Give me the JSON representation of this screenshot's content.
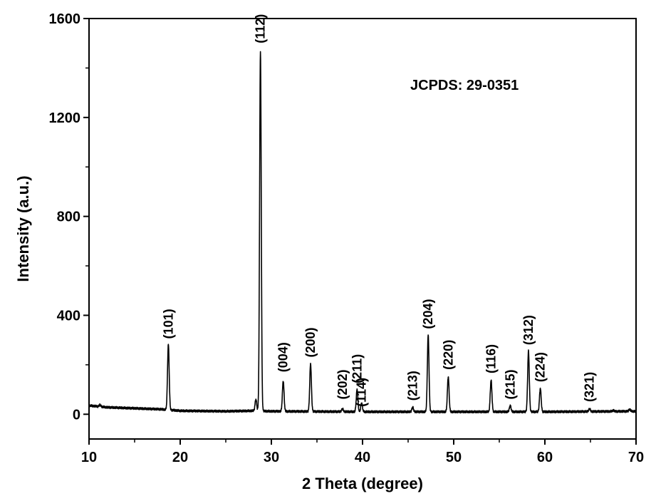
{
  "chart_data": {
    "type": "line",
    "xlabel": "2 Theta (degree)",
    "ylabel": "Intensity (a.u.)",
    "xlim": [
      10,
      70
    ],
    "ylim": [
      -100,
      1600
    ],
    "x_ticks": [
      "10",
      "20",
      "30",
      "40",
      "50",
      "60",
      "70"
    ],
    "y_ticks": [
      "0",
      "400",
      "800",
      "1200",
      "1600"
    ],
    "annotation": "JCPDS: 29-0351",
    "baseline": [
      [
        10,
        35
      ],
      [
        12,
        28
      ],
      [
        15,
        24
      ],
      [
        18,
        20
      ],
      [
        20,
        14
      ],
      [
        25,
        12
      ],
      [
        28,
        14
      ],
      [
        30,
        12
      ],
      [
        40,
        10
      ],
      [
        50,
        10
      ],
      [
        60,
        10
      ],
      [
        70,
        12
      ]
    ],
    "peaks": [
      {
        "x": 11.2,
        "y": 38,
        "label": ""
      },
      {
        "x": 18.7,
        "y": 283,
        "label": "(101)"
      },
      {
        "x": 28.3,
        "y": 60,
        "label": ""
      },
      {
        "x": 28.8,
        "y": 1465,
        "label": "(112)"
      },
      {
        "x": 31.3,
        "y": 135,
        "label": "(004)"
      },
      {
        "x": 34.3,
        "y": 205,
        "label": "(200)"
      },
      {
        "x": 37.8,
        "y": 22,
        "label": "(202)"
      },
      {
        "x": 39.4,
        "y": 100,
        "label": "(211)"
      },
      {
        "x": 39.9,
        "y": 45,
        "label": "(114)"
      },
      {
        "x": 45.5,
        "y": 28,
        "label": "(213)"
      },
      {
        "x": 47.2,
        "y": 320,
        "label": "(204)"
      },
      {
        "x": 49.4,
        "y": 152,
        "label": "(220)"
      },
      {
        "x": 54.1,
        "y": 138,
        "label": "(116)"
      },
      {
        "x": 56.2,
        "y": 35,
        "label": "(215)"
      },
      {
        "x": 58.2,
        "y": 255,
        "label": "(312)"
      },
      {
        "x": 59.5,
        "y": 105,
        "label": "(224)"
      },
      {
        "x": 64.9,
        "y": 22,
        "label": "(321)"
      },
      {
        "x": 67.5,
        "y": 16,
        "label": ""
      },
      {
        "x": 69.3,
        "y": 20,
        "label": ""
      }
    ],
    "peak_label_tops": [
      {
        "label": "(101)",
        "y": 305
      },
      {
        "label": "(112)",
        "y": 1500
      },
      {
        "label": "(004)",
        "y": 170
      },
      {
        "label": "(200)",
        "y": 230
      },
      {
        "label": "(202)",
        "y": 60
      },
      {
        "label": "(211)",
        "y": 125
      },
      {
        "label": "(114)",
        "y": 30
      },
      {
        "label": "(213)",
        "y": 55
      },
      {
        "label": "(204)",
        "y": 345
      },
      {
        "label": "(220)",
        "y": 180
      },
      {
        "label": "(116)",
        "y": 165
      },
      {
        "label": "(215)",
        "y": 60
      },
      {
        "label": "(312)",
        "y": 280
      },
      {
        "label": "(224)",
        "y": 130
      },
      {
        "label": "(321)",
        "y": 50
      }
    ]
  }
}
